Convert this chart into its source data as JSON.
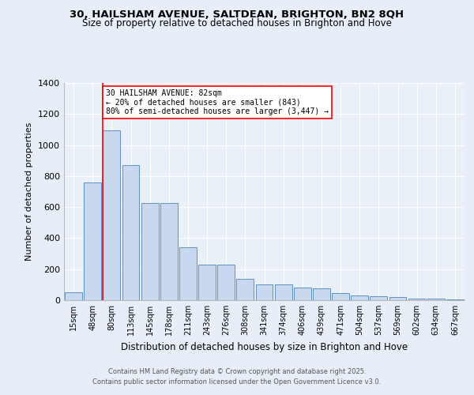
{
  "title_line1": "30, HAILSHAM AVENUE, SALTDEAN, BRIGHTON, BN2 8QH",
  "title_line2": "Size of property relative to detached houses in Brighton and Hove",
  "xlabel": "Distribution of detached houses by size in Brighton and Hove",
  "ylabel": "Number of detached properties",
  "categories": [
    "15sqm",
    "48sqm",
    "80sqm",
    "113sqm",
    "145sqm",
    "178sqm",
    "211sqm",
    "243sqm",
    "276sqm",
    "308sqm",
    "341sqm",
    "374sqm",
    "406sqm",
    "439sqm",
    "471sqm",
    "504sqm",
    "537sqm",
    "569sqm",
    "602sqm",
    "634sqm",
    "667sqm"
  ],
  "values": [
    50,
    760,
    1095,
    870,
    625,
    625,
    340,
    230,
    230,
    140,
    100,
    100,
    80,
    75,
    45,
    30,
    25,
    20,
    10,
    8,
    5
  ],
  "bar_color": "#c8d8ee",
  "bar_edge_color": "#6090c0",
  "annotation_text": "30 HAILSHAM AVENUE: 82sqm\n← 20% of detached houses are smaller (843)\n80% of semi-detached houses are larger (3,447) →",
  "property_line_bar_index": 2,
  "ylim_max": 1400,
  "ytick_step": 200,
  "background_color": "#e8eef8",
  "plot_bg_color": "#eaf0f8",
  "footer_line1": "Contains HM Land Registry data © Crown copyright and database right 2025.",
  "footer_line2": "Contains public sector information licensed under the Open Government Licence v3.0."
}
